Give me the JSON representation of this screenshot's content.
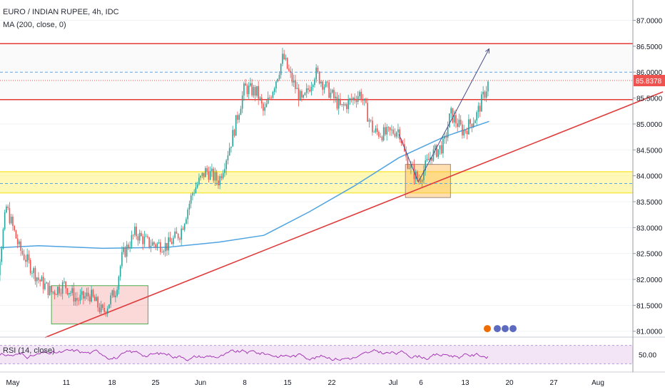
{
  "header": {
    "symbol_title": "EURO / INDIAN RUPEE, 4h, IDC",
    "ma_label": "MA (200, close, 0)"
  },
  "rsi": {
    "label": "RSI (14, close)",
    "value_tick": "50.00",
    "upper_level": 70,
    "lower_level": 30
  },
  "colors": {
    "up": "#26a69a",
    "down": "#ef5350",
    "ma": "#4fa3e0",
    "trendline": "#e03b3b",
    "resistance": "#e53935",
    "support_zone": "#fff59d",
    "dashed": "#5aa5e8",
    "rsi_line": "#9c27b0",
    "rsi_fill": "#f3e5f5",
    "price_tag": "#ef5350"
  },
  "chart_data": {
    "type": "candlestick",
    "title": "EURO / INDIAN RUPEE, 4h, IDC",
    "price_axis": {
      "ticks": [
        "87.0000",
        "86.5000",
        "86.0000",
        "85.5000",
        "85.0000",
        "84.5000",
        "84.0000",
        "83.5000",
        "83.0000",
        "82.5000",
        "82.0000",
        "81.5000",
        "81.0000"
      ],
      "range": [
        80.9,
        87.2
      ]
    },
    "current_price": "85.8378",
    "time_axis": {
      "ticks": [
        "May",
        "11",
        "18",
        "25",
        "Jun",
        "8",
        "15",
        "22",
        "Jul",
        "6",
        "13",
        "20",
        "27",
        "Aug"
      ]
    },
    "horizontal_levels": [
      {
        "kind": "resistance",
        "price": 86.55
      },
      {
        "kind": "resistance",
        "price": 85.47
      },
      {
        "kind": "dashed",
        "price": 86.0
      },
      {
        "kind": "dashed",
        "price": 83.85
      },
      {
        "kind": "current-price",
        "price": 85.84
      }
    ],
    "support_zone": [
      83.67,
      84.08
    ],
    "boxes": [
      {
        "kind": "demand-red",
        "from": "2020-05-07",
        "to": "2020-05-22",
        "high": 81.88,
        "low": 81.14
      },
      {
        "kind": "demand-orange",
        "from": "2020-07-01",
        "to": "2020-07-08",
        "high": 84.22,
        "low": 83.58
      }
    ],
    "trendline": {
      "from": {
        "date": "2020-05-06",
        "price": 80.88
      },
      "to": {
        "date": "2020-08-10",
        "price": 85.62
      }
    },
    "projection_arrows": [
      {
        "from": {
          "date": "2020-06-30",
          "price": 84.8
        },
        "to": {
          "date": "2020-07-03",
          "price": 83.88
        }
      },
      {
        "from": {
          "date": "2020-07-03",
          "price": 83.88
        },
        "to": {
          "date": "2020-07-09",
          "price": 85.28
        }
      },
      {
        "from": {
          "date": "2020-07-09",
          "price": 85.28
        },
        "to": {
          "date": "2020-07-14",
          "price": 86.45
        }
      }
    ],
    "close_path": [
      {
        "date": "2020-04-27",
        "price": 82.1
      },
      {
        "date": "2020-04-28",
        "price": 81.5
      },
      {
        "date": "2020-04-30",
        "price": 83.4
      },
      {
        "date": "2020-05-02",
        "price": 82.6
      },
      {
        "date": "2020-05-05",
        "price": 82.0
      },
      {
        "date": "2020-05-07",
        "price": 81.75
      },
      {
        "date": "2020-05-09",
        "price": 81.9
      },
      {
        "date": "2020-05-11",
        "price": 81.6
      },
      {
        "date": "2020-05-13",
        "price": 81.7
      },
      {
        "date": "2020-05-15",
        "price": 81.35
      },
      {
        "date": "2020-05-17",
        "price": 81.8
      },
      {
        "date": "2020-05-18",
        "price": 82.45
      },
      {
        "date": "2020-05-20",
        "price": 82.9
      },
      {
        "date": "2020-05-22",
        "price": 82.7
      },
      {
        "date": "2020-05-25",
        "price": 82.65
      },
      {
        "date": "2020-05-27",
        "price": 82.9
      },
      {
        "date": "2020-05-29",
        "price": 83.7
      },
      {
        "date": "2020-05-31",
        "price": 84.1
      },
      {
        "date": "2020-06-02",
        "price": 83.9
      },
      {
        "date": "2020-06-04",
        "price": 84.7
      },
      {
        "date": "2020-06-06",
        "price": 85.7
      },
      {
        "date": "2020-06-08",
        "price": 85.6
      },
      {
        "date": "2020-06-09",
        "price": 85.2
      },
      {
        "date": "2020-06-11",
        "price": 85.9
      },
      {
        "date": "2020-06-12",
        "price": 86.3
      },
      {
        "date": "2020-06-13",
        "price": 85.95
      },
      {
        "date": "2020-06-15",
        "price": 85.4
      },
      {
        "date": "2020-06-17",
        "price": 86.0
      },
      {
        "date": "2020-06-19",
        "price": 85.65
      },
      {
        "date": "2020-06-21",
        "price": 85.3
      },
      {
        "date": "2020-06-24",
        "price": 85.6
      },
      {
        "date": "2020-06-26",
        "price": 84.85
      },
      {
        "date": "2020-06-28",
        "price": 84.8
      },
      {
        "date": "2020-06-30",
        "price": 84.9
      },
      {
        "date": "2020-07-01",
        "price": 84.35
      },
      {
        "date": "2020-07-03",
        "price": 83.9
      },
      {
        "date": "2020-07-05",
        "price": 84.4
      },
      {
        "date": "2020-07-07",
        "price": 84.6
      },
      {
        "date": "2020-07-08",
        "price": 85.2
      },
      {
        "date": "2020-07-10",
        "price": 84.85
      },
      {
        "date": "2020-07-12",
        "price": 85.15
      },
      {
        "date": "2020-07-14",
        "price": 85.84
      }
    ],
    "ma200_path": [
      {
        "date": "2020-04-27",
        "price": 82.6
      },
      {
        "date": "2020-05-05",
        "price": 82.65
      },
      {
        "date": "2020-05-15",
        "price": 82.6
      },
      {
        "date": "2020-05-25",
        "price": 82.62
      },
      {
        "date": "2020-06-02",
        "price": 82.72
      },
      {
        "date": "2020-06-09",
        "price": 82.85
      },
      {
        "date": "2020-06-16",
        "price": 83.3
      },
      {
        "date": "2020-06-23",
        "price": 83.8
      },
      {
        "date": "2020-06-30",
        "price": 84.35
      },
      {
        "date": "2020-07-07",
        "price": 84.75
      },
      {
        "date": "2020-07-14",
        "price": 85.05
      }
    ]
  }
}
